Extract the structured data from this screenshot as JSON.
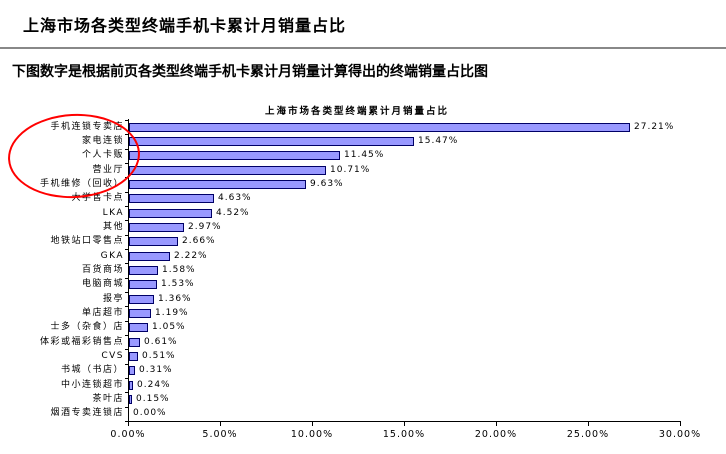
{
  "page": {
    "title": "上海市场各类型终端手机卡累计月销量占比",
    "subtitle": "下图数字是根据前页各类型终端手机卡累计月销量计算得出的终端销量占比图"
  },
  "chart_data": {
    "type": "bar",
    "orientation": "horizontal",
    "title": "上海市场各类型终端累计月销量占比",
    "categories": [
      "手机连锁专卖店",
      "家电连锁",
      "个人卡贩",
      "营业厅",
      "手机维修（回收）",
      "大学售卡点",
      "LKA",
      "其他",
      "地铁站口零售点",
      "GKA",
      "百货商场",
      "电脑商城",
      "报亭",
      "单店超市",
      "士多（杂食）店",
      "体彩或福彩销售点",
      "CVS",
      "书城（书店）",
      "中小连锁超市",
      "茶叶店",
      "烟酒专卖连锁店"
    ],
    "values": [
      27.21,
      15.47,
      11.45,
      10.71,
      9.63,
      4.63,
      4.52,
      2.97,
      2.66,
      2.22,
      1.58,
      1.53,
      1.36,
      1.19,
      1.05,
      0.61,
      0.51,
      0.31,
      0.24,
      0.15,
      0.0
    ],
    "value_labels": [
      "27.21%",
      "15.47%",
      "11.45%",
      "10.71%",
      "9.63%",
      "4.63%",
      "4.52%",
      "2.97%",
      "2.66%",
      "2.22%",
      "1.58%",
      "1.53%",
      "1.36%",
      "1.19%",
      "1.05%",
      "0.61%",
      "0.51%",
      "0.31%",
      "0.24%",
      "0.15%",
      "0.00%"
    ],
    "x_ticks": [
      "0.00%",
      "5.00%",
      "10.00%",
      "15.00%",
      "20.00%",
      "25.00%",
      "30.00%"
    ],
    "xlim": [
      0,
      30
    ],
    "grid": false,
    "legend": false,
    "bar_color": "#9999FF",
    "bar_border_color": "#000066",
    "annotation": {
      "shape": "ellipse",
      "color": "#FF0000",
      "circled_categories": [
        "手机连锁专卖店",
        "家电连锁",
        "个人卡贩",
        "营业厅",
        "手机维修（回收）"
      ]
    }
  }
}
